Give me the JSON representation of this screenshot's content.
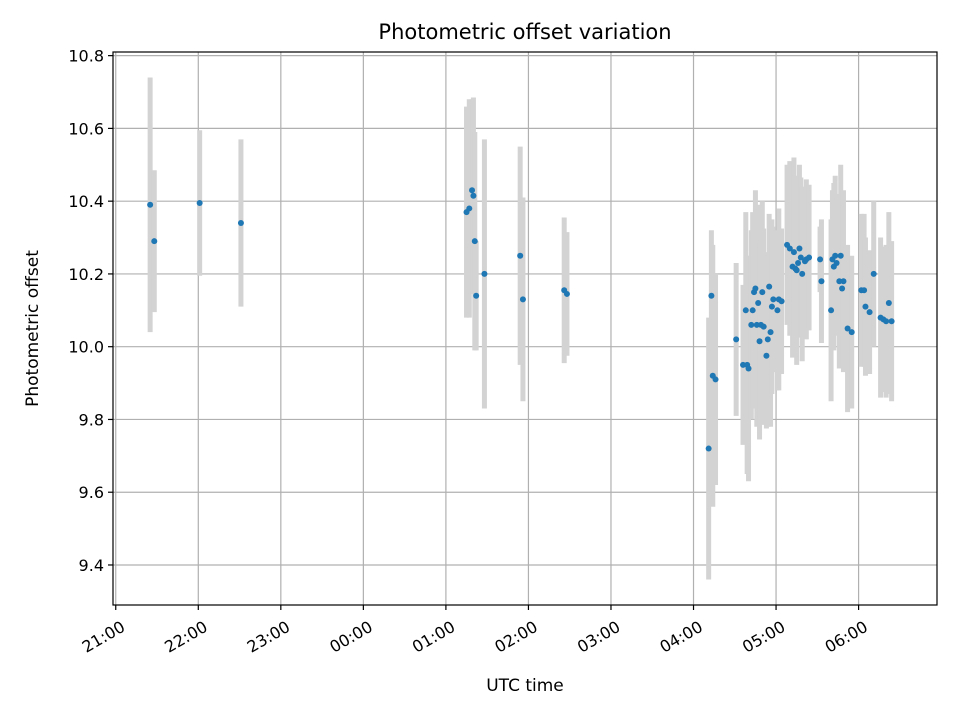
{
  "chart_data": {
    "type": "scatter",
    "title": "Photometric offset variation",
    "xlabel": "UTC time",
    "ylabel": "Photometric offset",
    "xaxis": {
      "unit": "minutes after 21:00 UTC",
      "range": [
        -2,
        597
      ],
      "ticks": [
        0,
        60,
        120,
        180,
        240,
        300,
        360,
        420,
        480,
        540
      ],
      "tick_labels": [
        "21:00",
        "22:00",
        "23:00",
        "00:00",
        "01:00",
        "02:00",
        "03:00",
        "04:00",
        "05:00",
        "06:00"
      ]
    },
    "yaxis": {
      "range": [
        9.29,
        10.81
      ],
      "ticks": [
        9.4,
        9.6,
        9.8,
        10.0,
        10.2,
        10.4,
        10.6,
        10.8
      ],
      "tick_labels": [
        "9.4",
        "9.6",
        "9.8",
        "10.0",
        "10.2",
        "10.4",
        "10.6",
        "10.8"
      ]
    },
    "grid": true,
    "colors": {
      "points": "#1f77b4",
      "errorbars": "#d3d3d3",
      "grid": "#b0b0b0"
    },
    "series": [
      {
        "x": [
          25,
          28,
          61,
          91,
          255,
          257,
          259,
          260,
          261,
          262,
          268,
          294,
          296,
          326,
          328,
          431,
          433,
          434,
          436,
          451,
          456,
          458,
          459,
          460,
          462,
          463,
          464,
          465,
          466,
          467,
          468,
          469,
          470,
          471,
          473,
          474,
          475,
          476,
          477,
          478,
          481,
          482,
          484,
          488,
          490,
          492,
          493,
          494,
          495,
          496,
          497,
          498,
          499,
          501,
          502,
          504,
          512,
          513,
          520,
          521,
          522,
          523,
          524,
          526,
          527,
          528,
          529,
          532,
          535,
          542,
          544,
          545,
          548,
          551,
          556,
          558,
          560,
          562,
          564
        ],
        "y": [
          10.39,
          10.29,
          10.395,
          10.34,
          10.37,
          10.38,
          10.43,
          10.415,
          10.29,
          10.14,
          10.2,
          10.25,
          10.13,
          10.155,
          10.145,
          9.72,
          10.14,
          9.92,
          9.91,
          10.02,
          9.95,
          10.1,
          9.95,
          9.94,
          10.06,
          10.1,
          10.15,
          10.16,
          10.06,
          10.12,
          10.015,
          10.06,
          10.15,
          10.055,
          9.975,
          10.02,
          10.165,
          10.04,
          10.11,
          10.13,
          10.1,
          10.13,
          10.125,
          10.28,
          10.27,
          10.22,
          10.26,
          10.215,
          10.21,
          10.23,
          10.27,
          10.245,
          10.2,
          10.235,
          10.24,
          10.245,
          10.24,
          10.18,
          10.1,
          10.24,
          10.22,
          10.25,
          10.23,
          10.18,
          10.25,
          10.16,
          10.18,
          10.05,
          10.04,
          10.155,
          10.155,
          10.11,
          10.095,
          10.2,
          10.08,
          10.075,
          10.07,
          10.12,
          10.07
        ],
        "err": [
          0.35,
          0.195,
          0.2,
          0.23,
          0.29,
          0.3,
          0.25,
          0.27,
          0.3,
          0.15,
          0.37,
          0.3,
          0.28,
          0.2,
          0.17,
          0.36,
          0.18,
          0.36,
          0.29,
          0.21,
          0.22,
          0.27,
          0.3,
          0.31,
          0.26,
          0.27,
          0.21,
          0.27,
          0.28,
          0.27,
          0.27,
          0.26,
          0.25,
          0.27,
          0.2,
          0.24,
          0.2,
          0.26,
          0.24,
          0.2,
          0.22,
          0.25,
          0.2,
          0.22,
          0.24,
          0.25,
          0.26,
          0.24,
          0.26,
          0.2,
          0.23,
          0.22,
          0.24,
          0.2,
          0.22,
          0.2,
          0.09,
          0.17,
          0.25,
          0.19,
          0.23,
          0.22,
          0.17,
          0.24,
          0.25,
          0.2,
          0.25,
          0.23,
          0.21,
          0.21,
          0.21,
          0.19,
          0.17,
          0.2,
          0.22,
          0.2,
          0.21,
          0.25,
          0.22
        ]
      }
    ]
  }
}
